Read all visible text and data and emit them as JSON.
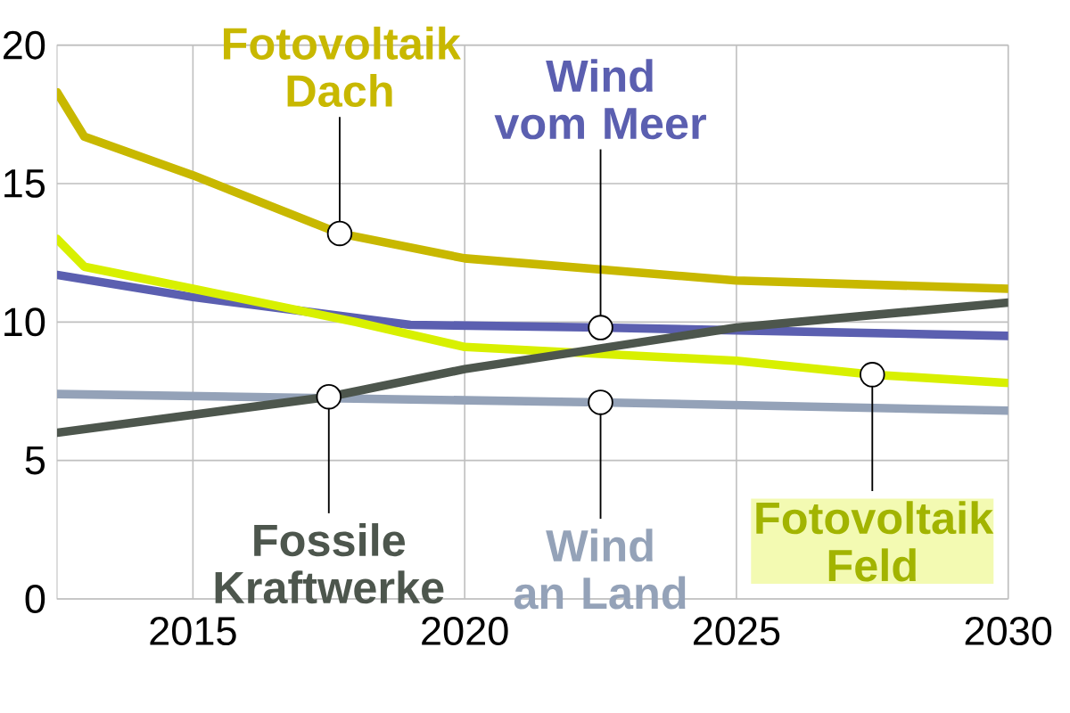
{
  "chart_data": {
    "type": "line",
    "xlim": [
      2012.5,
      2030
    ],
    "ylim": [
      0,
      20
    ],
    "xticks": [
      2015,
      2020,
      2025,
      2030
    ],
    "yticks": [
      0,
      5,
      10,
      15,
      20
    ],
    "grid": true,
    "marker": "none",
    "line_style": "solid",
    "series": [
      {
        "color": "#c8b800",
        "x": [
          2012.5,
          2013,
          2015,
          2017.7,
          2020,
          2025,
          2030
        ],
        "values": [
          18.3,
          16.7,
          15.3,
          13.2,
          12.3,
          11.5,
          11.2
        ]
      },
      {
        "color": "#5b5fb0",
        "x": [
          2012.5,
          2015,
          2019,
          2022.5,
          2030
        ],
        "values": [
          11.7,
          10.9,
          9.9,
          9.8,
          9.5
        ]
      },
      {
        "color": "#d8f000",
        "x": [
          2012.5,
          2013,
          2015,
          2018,
          2020,
          2025,
          2027.5,
          2030
        ],
        "values": [
          13.0,
          12.0,
          11.2,
          10.0,
          9.1,
          8.6,
          8.1,
          7.8
        ]
      },
      {
        "color": "#94a2b8",
        "x": [
          2012.5,
          2022.5,
          2030
        ],
        "values": [
          7.4,
          7.1,
          6.8
        ]
      },
      {
        "color": "#4d564d",
        "x": [
          2012.5,
          2017.5,
          2020,
          2025,
          2030
        ],
        "values": [
          6.0,
          7.3,
          8.3,
          9.8,
          10.7
        ]
      }
    ],
    "annotations": [
      {
        "text": "Fotovoltaik Dach",
        "x": 2017.7,
        "y": 13.2
      },
      {
        "text": "Wind vom Meer",
        "x": 2022.5,
        "y": 9.8
      },
      {
        "text": "Fossile Kraftwerke",
        "x": 2017.5,
        "y": 7.3
      },
      {
        "text": "Wind an Land",
        "x": 2022.5,
        "y": 7.1
      },
      {
        "text": "Fotovoltaik Feld",
        "x": 2027.5,
        "y": 8.1
      }
    ]
  }
}
